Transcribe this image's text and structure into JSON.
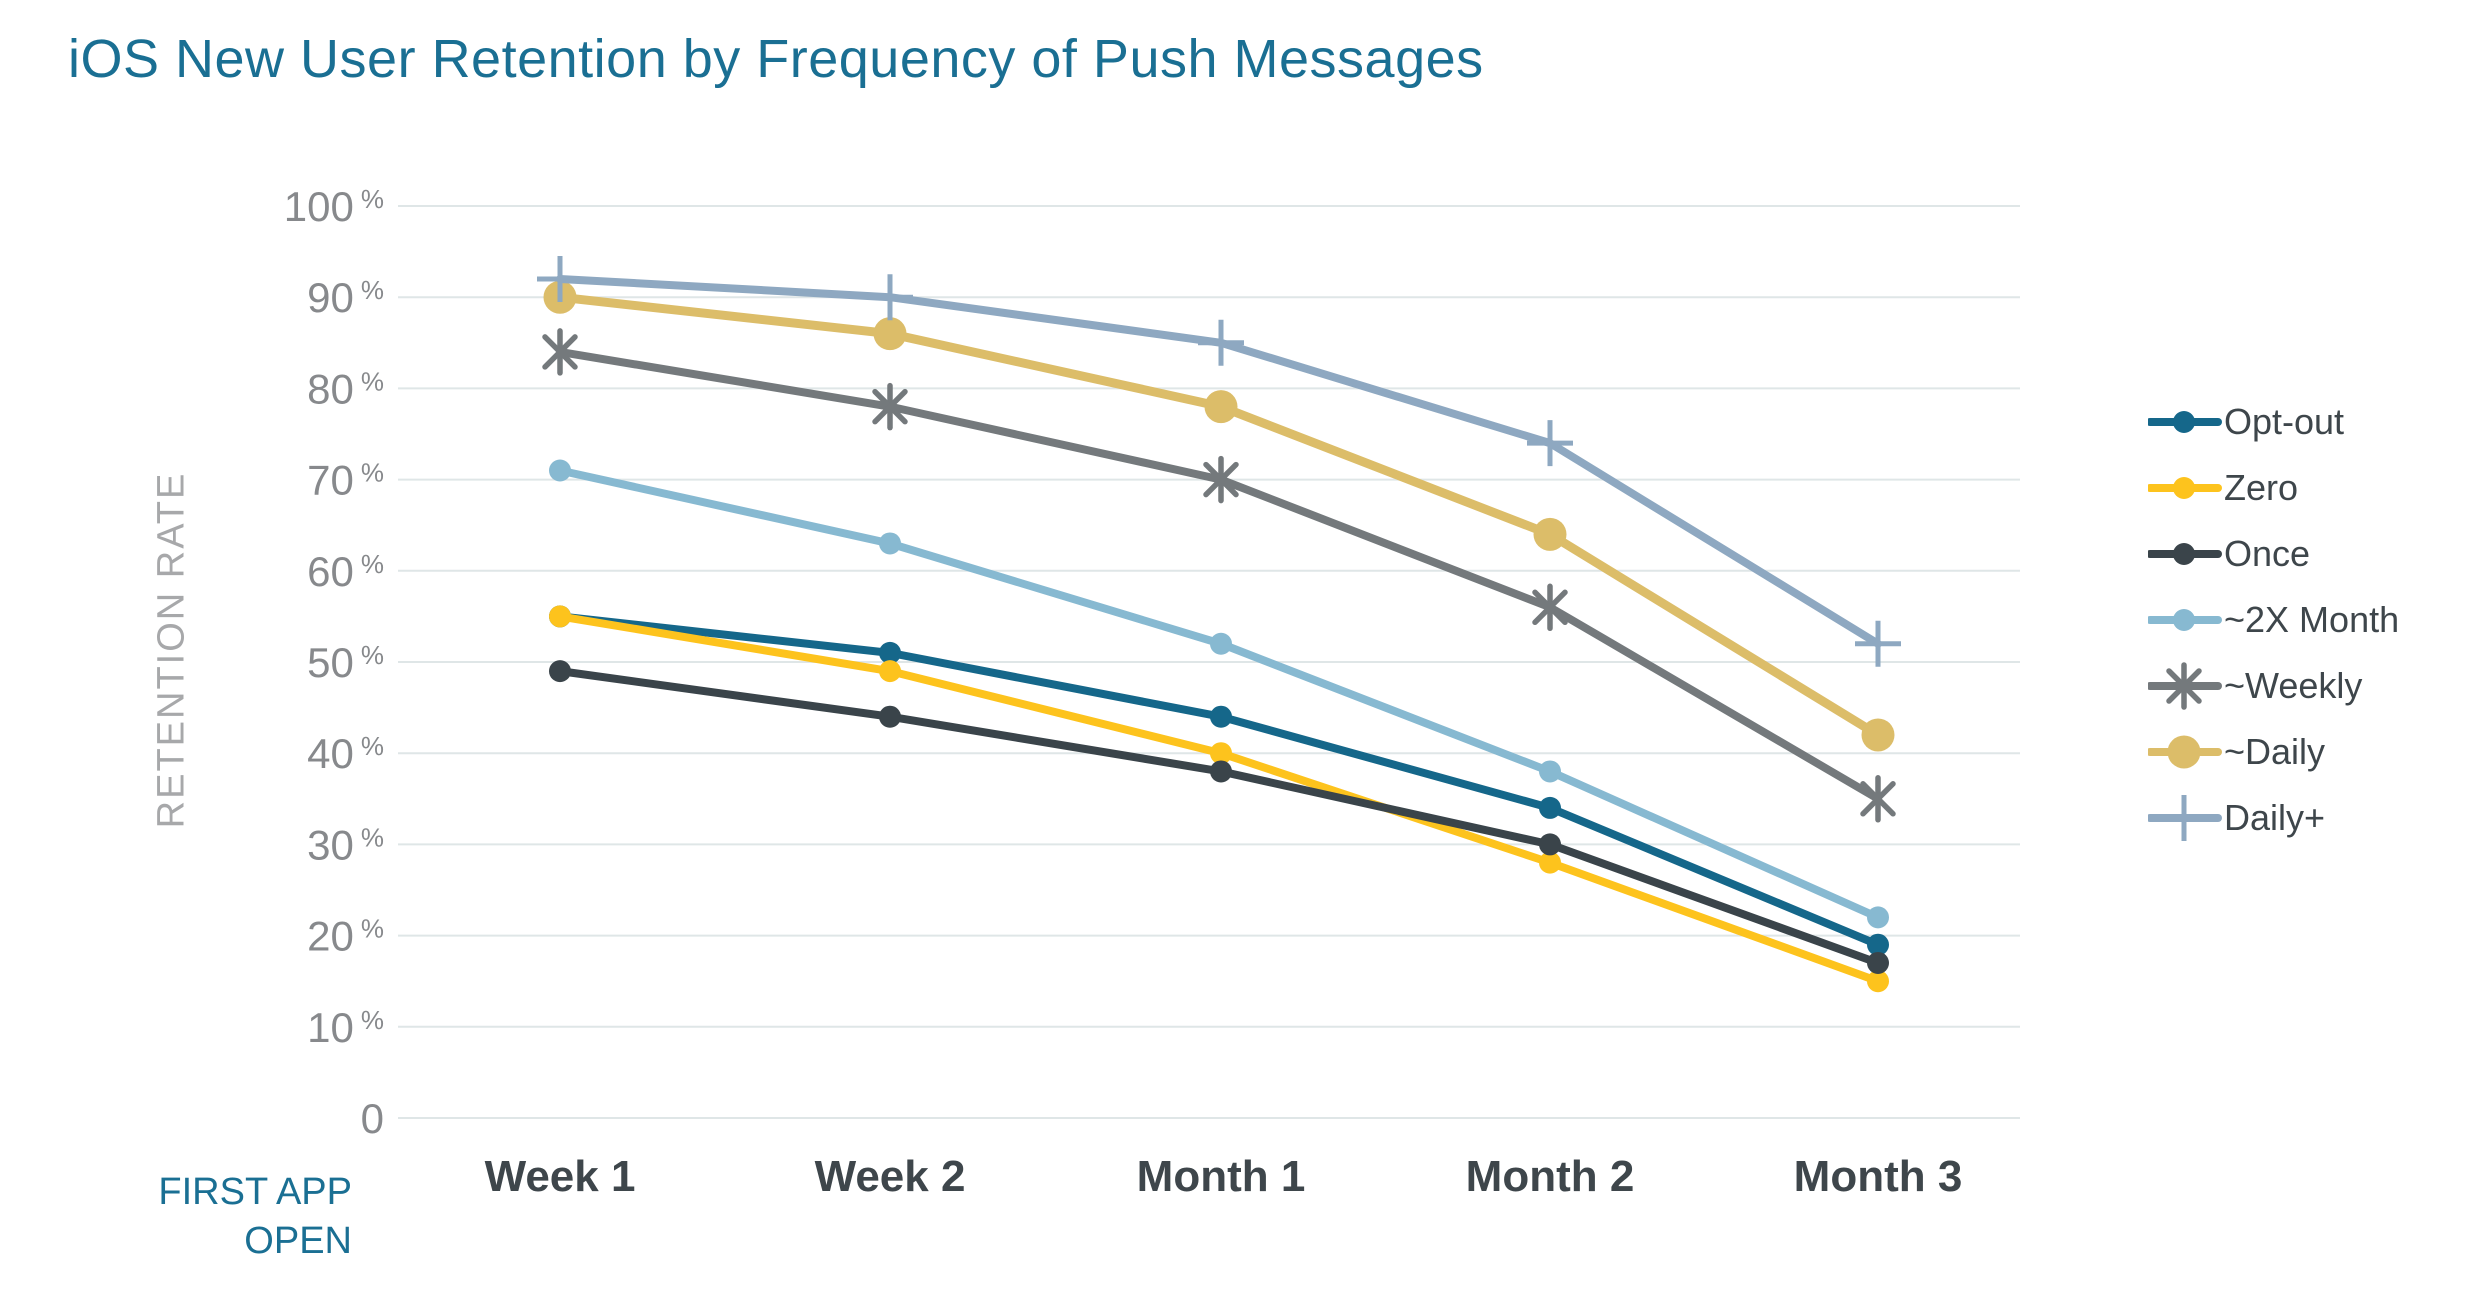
{
  "title": {
    "text": "iOS New User Retention by Frequency of Push Messages",
    "color": "#1a6f93"
  },
  "colors": {
    "grid": "#dfe6e7",
    "tick_text": "#87898c",
    "axis_title": "#a7a8aa",
    "x_label": "#3e464b",
    "legend_text": "#3e464b",
    "background": "#ffffff"
  },
  "chart_data": {
    "type": "line",
    "title": "iOS New User Retention by Frequency of Push Messages",
    "categories": [
      "Week 1",
      "Week 2",
      "Month 1",
      "Month 2",
      "Month 3"
    ],
    "series": [
      {
        "key": "opt-out",
        "name": "Opt-out",
        "color": "#15678a",
        "marker": "circle",
        "values": [
          55,
          51,
          44,
          34,
          19
        ]
      },
      {
        "key": "zero",
        "name": "Zero",
        "color": "#fdc31d",
        "marker": "circle",
        "values": [
          55,
          49,
          40,
          28,
          15
        ]
      },
      {
        "key": "once",
        "name": "Once",
        "color": "#3a444a",
        "marker": "circle",
        "values": [
          49,
          44,
          38,
          30,
          17
        ]
      },
      {
        "key": "2x-month",
        "name": "~2X Month",
        "color": "#87b9d1",
        "marker": "circle",
        "values": [
          71,
          63,
          52,
          38,
          22
        ]
      },
      {
        "key": "weekly",
        "name": "~Weekly",
        "color": "#74797c",
        "marker": "asterisk",
        "values": [
          84,
          78,
          70,
          56,
          35
        ]
      },
      {
        "key": "daily",
        "name": "~Daily",
        "color": "#dcbd69",
        "marker": "circle-large",
        "values": [
          90,
          86,
          78,
          64,
          42
        ]
      },
      {
        "key": "daily-plus",
        "name": "Daily+",
        "color": "#8ea8c1",
        "marker": "plus",
        "values": [
          92,
          90,
          85,
          74,
          52
        ]
      }
    ],
    "ylabel": "RETENTION RATE",
    "xlabel_lines": [
      "FIRST APP",
      "OPEN"
    ],
    "ylim": [
      0,
      100
    ],
    "yticks": [
      0,
      10,
      20,
      30,
      40,
      50,
      60,
      70,
      80,
      90,
      100
    ],
    "ytick_suffix": "%",
    "grid": true,
    "legend_position": "right"
  }
}
